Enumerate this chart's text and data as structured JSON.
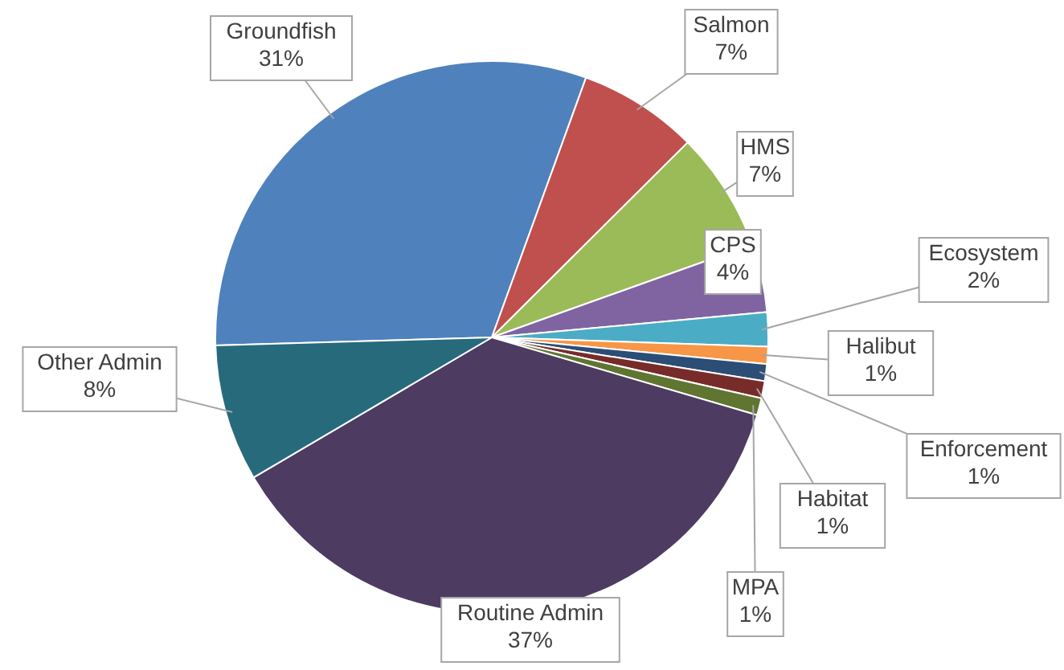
{
  "chart_data": {
    "type": "pie",
    "categories": [
      "Groundfish",
      "Salmon",
      "HMS",
      "CPS",
      "Ecosystem",
      "Halibut",
      "Enforcement",
      "Habitat",
      "MPA",
      "Routine Admin",
      "Other Admin"
    ],
    "values": [
      31,
      7,
      7,
      4,
      2,
      1,
      1,
      1,
      1,
      37,
      8
    ],
    "value_labels": [
      "31%",
      "7%",
      "7%",
      "4%",
      "2%",
      "1%",
      "1%",
      "1%",
      "1%",
      "37%",
      "8%"
    ],
    "colors": [
      "#4f81bd",
      "#c0504d",
      "#9bbb59",
      "#8064a2",
      "#4bacc6",
      "#f79646",
      "#2c4d75",
      "#772c2a",
      "#5f7530",
      "#4d3b62",
      "#276a7c"
    ]
  }
}
